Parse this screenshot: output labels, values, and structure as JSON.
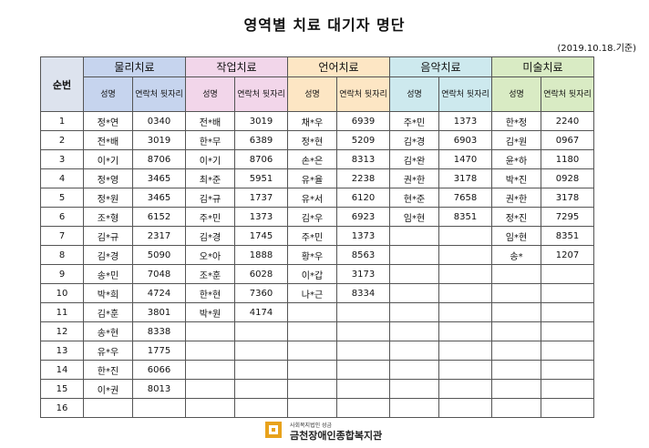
{
  "title": "영역별 치료 대기자 명단",
  "date_note": "(2019.10.18.기준)",
  "header": {
    "num_label": "순번",
    "sub_name": "성명",
    "sub_phone": "연락처 뒷자리"
  },
  "categories": [
    "물리치료",
    "작업치료",
    "언어치료",
    "음악치료",
    "미술치료"
  ],
  "rows": [
    {
      "no": "1",
      "cells": [
        [
          "정*연",
          "0340"
        ],
        [
          "전*배",
          "3019"
        ],
        [
          "채*우",
          "6939"
        ],
        [
          "주*민",
          "1373"
        ],
        [
          "한*정",
          "2240"
        ]
      ]
    },
    {
      "no": "2",
      "cells": [
        [
          "전*배",
          "3019"
        ],
        [
          "한*무",
          "6389"
        ],
        [
          "정*현",
          "5209"
        ],
        [
          "김*경",
          "6903"
        ],
        [
          "김*원",
          "0967"
        ]
      ]
    },
    {
      "no": "3",
      "cells": [
        [
          "이*기",
          "8706"
        ],
        [
          "이*기",
          "8706"
        ],
        [
          "손*은",
          "8313"
        ],
        [
          "김*완",
          "1470"
        ],
        [
          "윤*하",
          "1180"
        ]
      ]
    },
    {
      "no": "4",
      "cells": [
        [
          "정*영",
          "3465"
        ],
        [
          "최*준",
          "5951"
        ],
        [
          "유*율",
          "2238"
        ],
        [
          "권*한",
          "3178"
        ],
        [
          "박*진",
          "0928"
        ]
      ]
    },
    {
      "no": "5",
      "cells": [
        [
          "정*원",
          "3465"
        ],
        [
          "김*규",
          "1737"
        ],
        [
          "유*서",
          "6120"
        ],
        [
          "현*준",
          "7658"
        ],
        [
          "권*한",
          "3178"
        ]
      ]
    },
    {
      "no": "6",
      "cells": [
        [
          "조*형",
          "6152"
        ],
        [
          "주*민",
          "1373"
        ],
        [
          "김*우",
          "6923"
        ],
        [
          "임*현",
          "8351"
        ],
        [
          "정*진",
          "7295"
        ]
      ]
    },
    {
      "no": "7",
      "cells": [
        [
          "김*규",
          "2317"
        ],
        [
          "김*경",
          "1745"
        ],
        [
          "주*민",
          "1373"
        ],
        [
          "",
          ""
        ],
        [
          "임*현",
          "8351"
        ]
      ]
    },
    {
      "no": "8",
      "cells": [
        [
          "김*경",
          "5090"
        ],
        [
          "오*아",
          "1888"
        ],
        [
          "황*우",
          "8563"
        ],
        [
          "",
          ""
        ],
        [
          "송*",
          "1207"
        ]
      ]
    },
    {
      "no": "9",
      "cells": [
        [
          "송*민",
          "7048"
        ],
        [
          "조*훈",
          "6028"
        ],
        [
          "이*갑",
          "3173"
        ],
        [
          "",
          ""
        ],
        [
          "",
          ""
        ]
      ]
    },
    {
      "no": "10",
      "cells": [
        [
          "박*희",
          "4724"
        ],
        [
          "한*현",
          "7360"
        ],
        [
          "나*근",
          "8334"
        ],
        [
          "",
          ""
        ],
        [
          "",
          ""
        ]
      ]
    },
    {
      "no": "11",
      "cells": [
        [
          "김*훈",
          "3801"
        ],
        [
          "박*원",
          "4174"
        ],
        [
          "",
          ""
        ],
        [
          "",
          ""
        ],
        [
          "",
          ""
        ]
      ]
    },
    {
      "no": "12",
      "cells": [
        [
          "송*현",
          "8338"
        ],
        [
          "",
          ""
        ],
        [
          "",
          ""
        ],
        [
          "",
          ""
        ],
        [
          "",
          ""
        ]
      ]
    },
    {
      "no": "13",
      "cells": [
        [
          "유*우",
          "1775"
        ],
        [
          "",
          ""
        ],
        [
          "",
          ""
        ],
        [
          "",
          ""
        ],
        [
          "",
          ""
        ]
      ]
    },
    {
      "no": "14",
      "cells": [
        [
          "한*진",
          "6066"
        ],
        [
          "",
          ""
        ],
        [
          "",
          ""
        ],
        [
          "",
          ""
        ],
        [
          "",
          ""
        ]
      ]
    },
    {
      "no": "15",
      "cells": [
        [
          "이*권",
          "8013"
        ],
        [
          "",
          ""
        ],
        [
          "",
          ""
        ],
        [
          "",
          ""
        ],
        [
          "",
          ""
        ]
      ]
    },
    {
      "no": "16",
      "cells": [
        [
          "",
          ""
        ],
        [
          "",
          ""
        ],
        [
          "",
          ""
        ],
        [
          "",
          ""
        ],
        [
          "",
          ""
        ]
      ]
    }
  ],
  "footer": {
    "small": "사회복지법인 성금",
    "main": "금천장애인종합복지관",
    "logo_icon": "center-logo-icon",
    "logo_color": "#e8a21c"
  }
}
